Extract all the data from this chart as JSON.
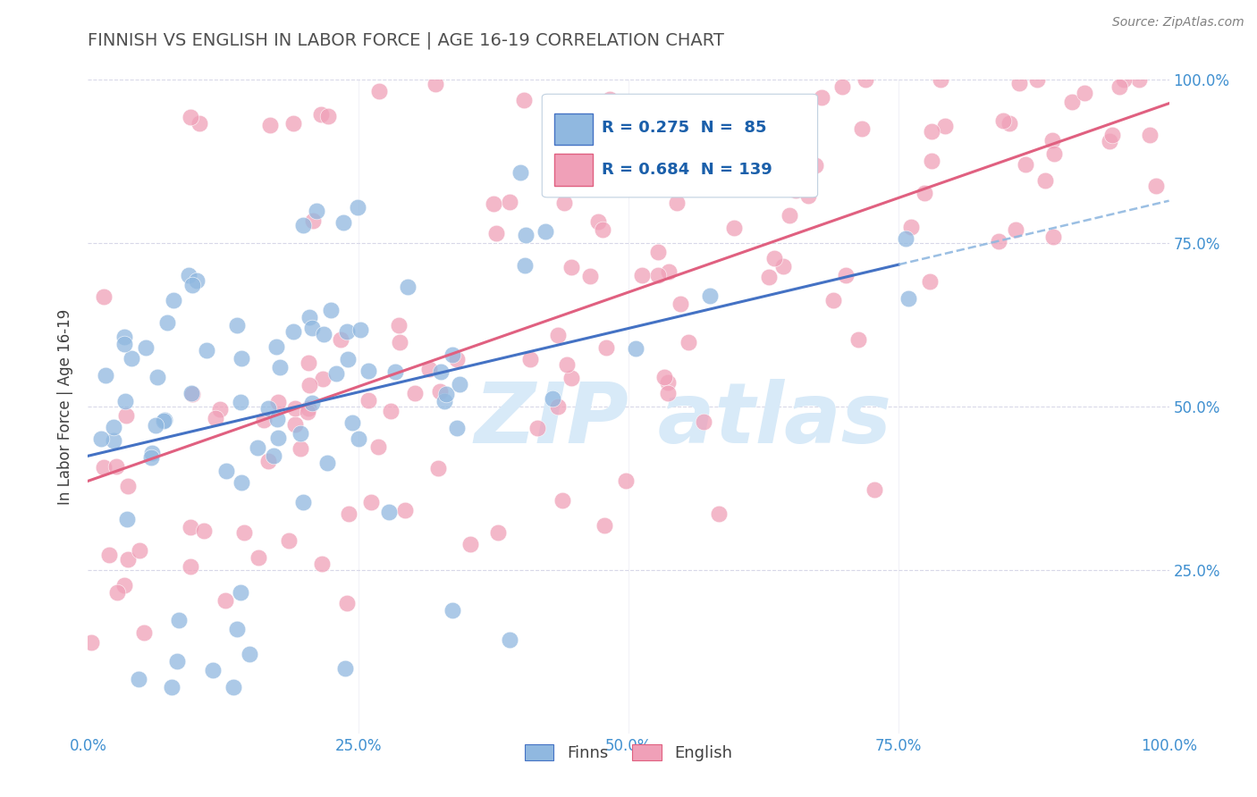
{
  "title": "FINNISH VS ENGLISH IN LABOR FORCE | AGE 16-19 CORRELATION CHART",
  "source": "Source: ZipAtlas.com",
  "ylabel": "In Labor Force | Age 16-19",
  "r_finns": 0.275,
  "n_finns": 85,
  "r_english": 0.684,
  "n_english": 139,
  "color_finns": "#90b8e0",
  "color_english": "#f0a0b8",
  "color_finns_line": "#4472c4",
  "color_english_line": "#e06080",
  "color_dashed_line": "#90b8e0",
  "background_color": "#ffffff",
  "watermark_color": "#d8eaf8",
  "title_color": "#505050",
  "axis_label_color": "#404040",
  "tick_label_color": "#4090d0",
  "gridline_color": "#d8d8e8",
  "legend_box_color": "#f0f4f8",
  "legend_border_color": "#c0d0e0",
  "legend_text_color": "#1a5faa",
  "legend_n_color": "#cc0000"
}
